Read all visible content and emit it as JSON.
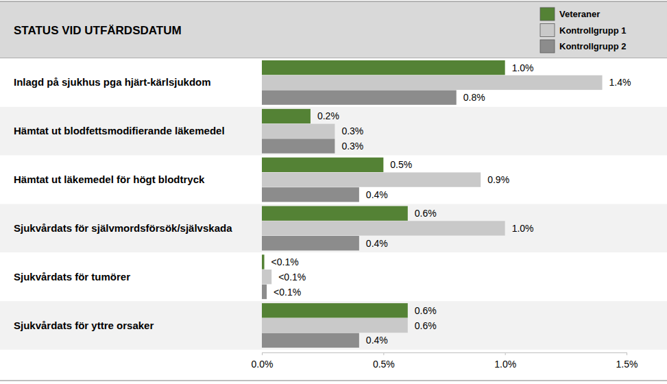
{
  "chart_data": {
    "type": "bar",
    "orientation": "horizontal",
    "title": "STATUS VID UTFÄRDSDATUM",
    "categories": [
      "Inlagd på sjukhus pga hjärt-kärlsjukdom",
      "Hämtat ut blodfettsmodifierande läkemedel",
      "Hämtat ut läkemedel för högt blodtryck",
      "Sjukvårdats för självmordsförsök/självskada",
      "Sjukvårdats för tumörer",
      "Sjukvårdats för yttre orsaker"
    ],
    "series": [
      {
        "name": "Veteraner",
        "color": "#548235",
        "values": [
          1.0,
          0.2,
          0.5,
          0.6,
          0.01,
          0.6
        ],
        "value_labels": [
          "1.0%",
          "0.2%",
          "0.5%",
          "0.6%",
          "<0.1%",
          "0.6%"
        ]
      },
      {
        "name": "Kontrollgrupp 1",
        "color": "#c9c9c9",
        "values": [
          1.4,
          0.3,
          0.9,
          1.0,
          0.04,
          0.6
        ],
        "value_labels": [
          "1.4%",
          "0.3%",
          "0.9%",
          "1.0%",
          "<0.1%",
          "0.6%"
        ]
      },
      {
        "name": "Kontrollgrupp 2",
        "color": "#8c8c8c",
        "values": [
          0.8,
          0.3,
          0.4,
          0.4,
          0.02,
          0.4
        ],
        "value_labels": [
          "0.8%",
          "0.3%",
          "0.4%",
          "0.4%",
          "<0.1%",
          "0.4%"
        ]
      }
    ],
    "xlim": [
      0,
      1.5
    ],
    "xticks": [
      {
        "value": 0,
        "label": "0.0%"
      },
      {
        "value": 0.5,
        "label": "0.5%"
      },
      {
        "value": 1.0,
        "label": "1.0%"
      },
      {
        "value": 1.5,
        "label": "1.5%"
      }
    ],
    "data_labels": true,
    "legend": "top-right"
  }
}
